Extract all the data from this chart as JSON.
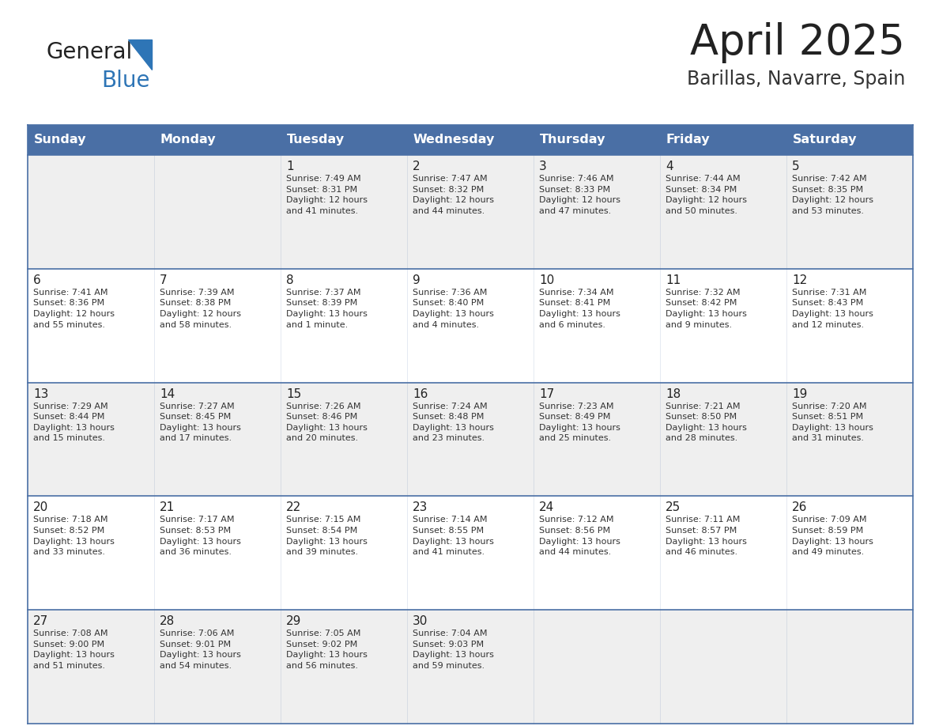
{
  "title": "April 2025",
  "subtitle": "Barillas, Navarre, Spain",
  "days_of_week": [
    "Sunday",
    "Monday",
    "Tuesday",
    "Wednesday",
    "Thursday",
    "Friday",
    "Saturday"
  ],
  "header_bg": "#4a6fa5",
  "header_text": "#FFFFFF",
  "row_bg_odd": "#EFEFEF",
  "row_bg_even": "#FFFFFF",
  "cell_border_color": "#4a6fa5",
  "day_number_color": "#222222",
  "text_color": "#333333",
  "title_color": "#222222",
  "subtitle_color": "#333333",
  "logo_general_color": "#222222",
  "logo_blue_color": "#2E75B6",
  "weeks": [
    {
      "days": [
        {
          "date": "",
          "sunrise": "",
          "sunset": "",
          "daylight": ""
        },
        {
          "date": "",
          "sunrise": "",
          "sunset": "",
          "daylight": ""
        },
        {
          "date": "1",
          "sunrise": "Sunrise: 7:49 AM",
          "sunset": "Sunset: 8:31 PM",
          "daylight": "Daylight: 12 hours\nand 41 minutes."
        },
        {
          "date": "2",
          "sunrise": "Sunrise: 7:47 AM",
          "sunset": "Sunset: 8:32 PM",
          "daylight": "Daylight: 12 hours\nand 44 minutes."
        },
        {
          "date": "3",
          "sunrise": "Sunrise: 7:46 AM",
          "sunset": "Sunset: 8:33 PM",
          "daylight": "Daylight: 12 hours\nand 47 minutes."
        },
        {
          "date": "4",
          "sunrise": "Sunrise: 7:44 AM",
          "sunset": "Sunset: 8:34 PM",
          "daylight": "Daylight: 12 hours\nand 50 minutes."
        },
        {
          "date": "5",
          "sunrise": "Sunrise: 7:42 AM",
          "sunset": "Sunset: 8:35 PM",
          "daylight": "Daylight: 12 hours\nand 53 minutes."
        }
      ]
    },
    {
      "days": [
        {
          "date": "6",
          "sunrise": "Sunrise: 7:41 AM",
          "sunset": "Sunset: 8:36 PM",
          "daylight": "Daylight: 12 hours\nand 55 minutes."
        },
        {
          "date": "7",
          "sunrise": "Sunrise: 7:39 AM",
          "sunset": "Sunset: 8:38 PM",
          "daylight": "Daylight: 12 hours\nand 58 minutes."
        },
        {
          "date": "8",
          "sunrise": "Sunrise: 7:37 AM",
          "sunset": "Sunset: 8:39 PM",
          "daylight": "Daylight: 13 hours\nand 1 minute."
        },
        {
          "date": "9",
          "sunrise": "Sunrise: 7:36 AM",
          "sunset": "Sunset: 8:40 PM",
          "daylight": "Daylight: 13 hours\nand 4 minutes."
        },
        {
          "date": "10",
          "sunrise": "Sunrise: 7:34 AM",
          "sunset": "Sunset: 8:41 PM",
          "daylight": "Daylight: 13 hours\nand 6 minutes."
        },
        {
          "date": "11",
          "sunrise": "Sunrise: 7:32 AM",
          "sunset": "Sunset: 8:42 PM",
          "daylight": "Daylight: 13 hours\nand 9 minutes."
        },
        {
          "date": "12",
          "sunrise": "Sunrise: 7:31 AM",
          "sunset": "Sunset: 8:43 PM",
          "daylight": "Daylight: 13 hours\nand 12 minutes."
        }
      ]
    },
    {
      "days": [
        {
          "date": "13",
          "sunrise": "Sunrise: 7:29 AM",
          "sunset": "Sunset: 8:44 PM",
          "daylight": "Daylight: 13 hours\nand 15 minutes."
        },
        {
          "date": "14",
          "sunrise": "Sunrise: 7:27 AM",
          "sunset": "Sunset: 8:45 PM",
          "daylight": "Daylight: 13 hours\nand 17 minutes."
        },
        {
          "date": "15",
          "sunrise": "Sunrise: 7:26 AM",
          "sunset": "Sunset: 8:46 PM",
          "daylight": "Daylight: 13 hours\nand 20 minutes."
        },
        {
          "date": "16",
          "sunrise": "Sunrise: 7:24 AM",
          "sunset": "Sunset: 8:48 PM",
          "daylight": "Daylight: 13 hours\nand 23 minutes."
        },
        {
          "date": "17",
          "sunrise": "Sunrise: 7:23 AM",
          "sunset": "Sunset: 8:49 PM",
          "daylight": "Daylight: 13 hours\nand 25 minutes."
        },
        {
          "date": "18",
          "sunrise": "Sunrise: 7:21 AM",
          "sunset": "Sunset: 8:50 PM",
          "daylight": "Daylight: 13 hours\nand 28 minutes."
        },
        {
          "date": "19",
          "sunrise": "Sunrise: 7:20 AM",
          "sunset": "Sunset: 8:51 PM",
          "daylight": "Daylight: 13 hours\nand 31 minutes."
        }
      ]
    },
    {
      "days": [
        {
          "date": "20",
          "sunrise": "Sunrise: 7:18 AM",
          "sunset": "Sunset: 8:52 PM",
          "daylight": "Daylight: 13 hours\nand 33 minutes."
        },
        {
          "date": "21",
          "sunrise": "Sunrise: 7:17 AM",
          "sunset": "Sunset: 8:53 PM",
          "daylight": "Daylight: 13 hours\nand 36 minutes."
        },
        {
          "date": "22",
          "sunrise": "Sunrise: 7:15 AM",
          "sunset": "Sunset: 8:54 PM",
          "daylight": "Daylight: 13 hours\nand 39 minutes."
        },
        {
          "date": "23",
          "sunrise": "Sunrise: 7:14 AM",
          "sunset": "Sunset: 8:55 PM",
          "daylight": "Daylight: 13 hours\nand 41 minutes."
        },
        {
          "date": "24",
          "sunrise": "Sunrise: 7:12 AM",
          "sunset": "Sunset: 8:56 PM",
          "daylight": "Daylight: 13 hours\nand 44 minutes."
        },
        {
          "date": "25",
          "sunrise": "Sunrise: 7:11 AM",
          "sunset": "Sunset: 8:57 PM",
          "daylight": "Daylight: 13 hours\nand 46 minutes."
        },
        {
          "date": "26",
          "sunrise": "Sunrise: 7:09 AM",
          "sunset": "Sunset: 8:59 PM",
          "daylight": "Daylight: 13 hours\nand 49 minutes."
        }
      ]
    },
    {
      "days": [
        {
          "date": "27",
          "sunrise": "Sunrise: 7:08 AM",
          "sunset": "Sunset: 9:00 PM",
          "daylight": "Daylight: 13 hours\nand 51 minutes."
        },
        {
          "date": "28",
          "sunrise": "Sunrise: 7:06 AM",
          "sunset": "Sunset: 9:01 PM",
          "daylight": "Daylight: 13 hours\nand 54 minutes."
        },
        {
          "date": "29",
          "sunrise": "Sunrise: 7:05 AM",
          "sunset": "Sunset: 9:02 PM",
          "daylight": "Daylight: 13 hours\nand 56 minutes."
        },
        {
          "date": "30",
          "sunrise": "Sunrise: 7:04 AM",
          "sunset": "Sunset: 9:03 PM",
          "daylight": "Daylight: 13 hours\nand 59 minutes."
        },
        {
          "date": "",
          "sunrise": "",
          "sunset": "",
          "daylight": ""
        },
        {
          "date": "",
          "sunrise": "",
          "sunset": "",
          "daylight": ""
        },
        {
          "date": "",
          "sunrise": "",
          "sunset": "",
          "daylight": ""
        }
      ]
    }
  ]
}
